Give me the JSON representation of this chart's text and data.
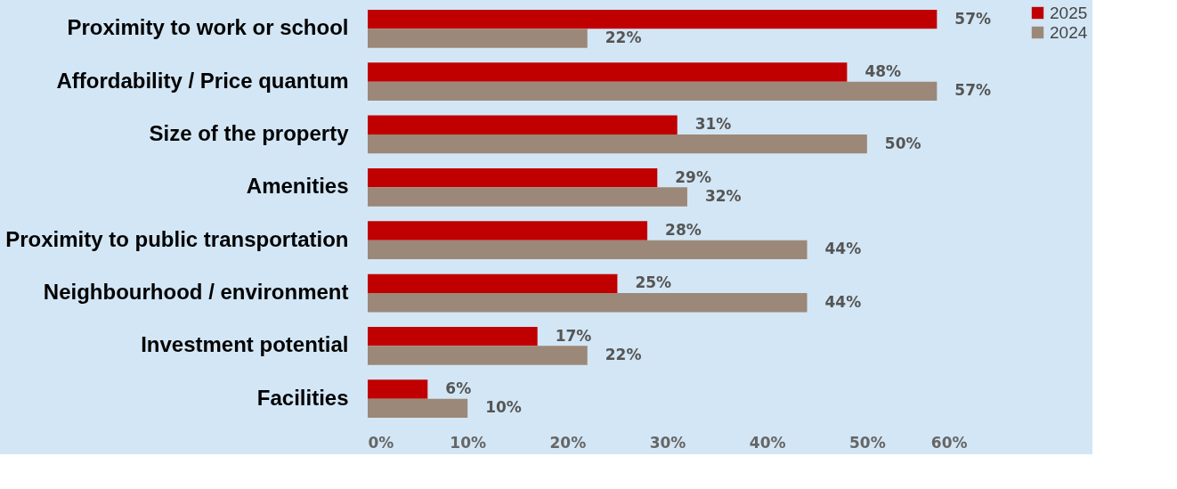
{
  "chart_data": {
    "type": "bar",
    "orientation": "horizontal",
    "categories": [
      "Proximity to work or school",
      "Affordability / Price quantum",
      "Size of the property",
      "Amenities",
      "Proximity to public transportation",
      "Neighbourhood / environment",
      "Investment potential",
      "Facilities"
    ],
    "series": [
      {
        "name": "2025",
        "color": "#c00000",
        "values": [
          57,
          48,
          31,
          29,
          28,
          25,
          17,
          6
        ],
        "value_labels": [
          "57%",
          "48%",
          "31%",
          "29%",
          "28%",
          "25%",
          "17%",
          "6%"
        ]
      },
      {
        "name": "2024",
        "color": "#9c8878",
        "values": [
          22,
          57,
          50,
          32,
          44,
          44,
          22,
          10
        ],
        "value_labels": [
          "22%",
          "57%",
          "50%",
          "32%",
          "44%",
          "44%",
          "22%",
          "10%"
        ]
      }
    ],
    "xlim": [
      0,
      60
    ],
    "xticks": [
      {
        "value": 0,
        "label": "0%"
      },
      {
        "value": 10,
        "label": "10%"
      },
      {
        "value": 20,
        "label": "20%"
      },
      {
        "value": 30,
        "label": "30%"
      },
      {
        "value": 40,
        "label": "40%"
      },
      {
        "value": 50,
        "label": "50%"
      },
      {
        "value": 60,
        "label": "60%"
      }
    ],
    "grid": false,
    "legend": "right"
  }
}
